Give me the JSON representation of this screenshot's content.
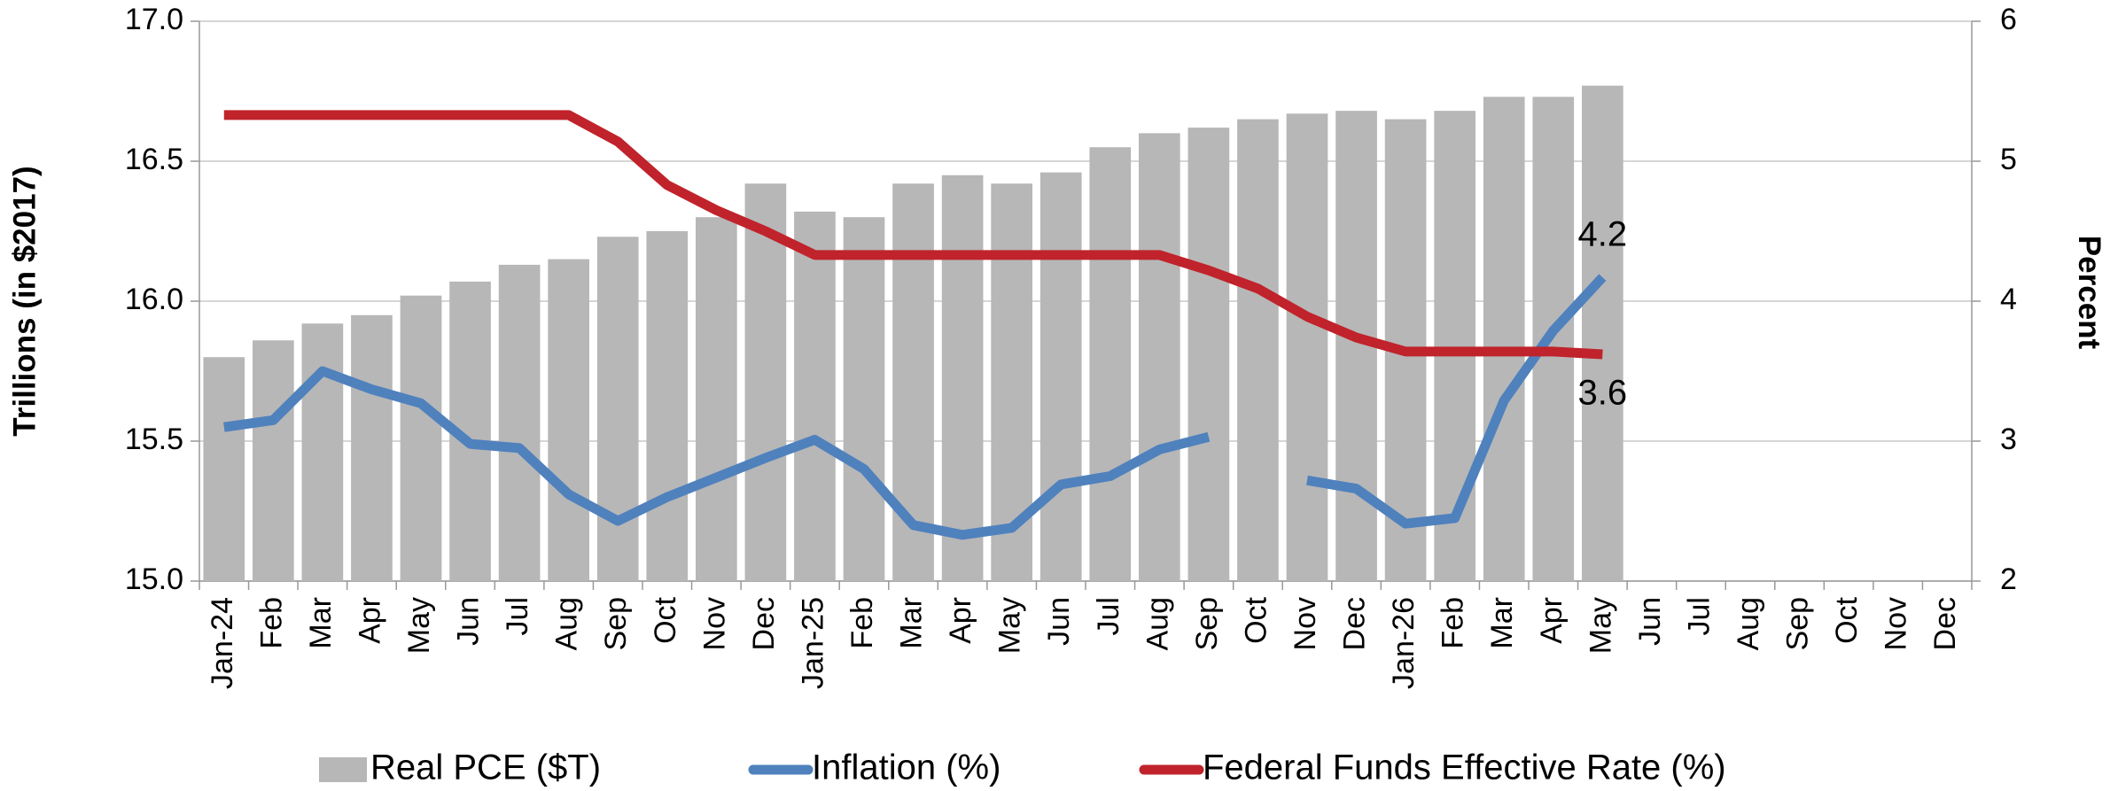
{
  "chart_data": {
    "type": "bar",
    "ylabel": "Trillions (in $2017)",
    "y2label": "Percent",
    "categories": [
      "Jan-24",
      "Feb",
      "Mar",
      "Apr",
      "May",
      "Jun",
      "Jul",
      "Aug",
      "Sep",
      "Oct",
      "Nov",
      "Dec",
      "Jan-25",
      "Feb",
      "Mar",
      "Apr",
      "May",
      "Jun",
      "Jul",
      "Aug",
      "Sep",
      "Oct",
      "Nov",
      "Dec",
      "Jan-26",
      "Feb",
      "Mar",
      "Apr",
      "May",
      "Jun",
      "Jul",
      "Aug",
      "Sep",
      "Oct",
      "Nov",
      "Dec"
    ],
    "ylim": [
      15,
      17
    ],
    "yticks": [
      {
        "value": 15,
        "label": "15.0"
      },
      {
        "value": 15.5,
        "label": "15.5"
      },
      {
        "value": 16,
        "label": "16.0"
      },
      {
        "value": 16.5,
        "label": "16.5"
      },
      {
        "value": 17,
        "label": "17.0"
      }
    ],
    "y2lim": [
      2,
      6
    ],
    "y2ticks": [
      2,
      3,
      4,
      5,
      6
    ],
    "grid": true,
    "legend": "bottom",
    "series": [
      {
        "name": "Real PCE ($T)",
        "type": "bar",
        "color": "#b7b7b7",
        "axis": "y",
        "values": [
          15.8,
          15.86,
          15.92,
          15.95,
          16.02,
          16.07,
          16.13,
          16.15,
          16.23,
          16.25,
          16.3,
          16.42,
          16.32,
          16.3,
          16.42,
          16.45,
          16.42,
          16.46,
          16.55,
          16.6,
          16.62,
          16.65,
          16.67,
          16.68,
          16.65,
          16.68,
          16.73,
          16.73,
          16.77,
          null,
          null,
          null,
          null,
          null,
          null,
          null
        ]
      },
      {
        "name": "Inflation (%)",
        "type": "line",
        "color": "#4f81bd",
        "axis": "y2",
        "values": [
          3.1,
          3.15,
          3.5,
          3.37,
          3.27,
          2.98,
          2.95,
          2.62,
          2.43,
          2.6,
          2.74,
          2.88,
          3.01,
          2.8,
          2.4,
          2.33,
          2.38,
          2.69,
          2.75,
          2.94,
          3.03,
          null,
          2.72,
          2.66,
          2.41,
          2.45,
          3.29,
          3.79,
          4.17,
          null,
          null,
          null,
          null,
          null,
          null,
          null
        ],
        "value_labels": [
          null,
          null,
          null,
          null,
          null,
          null,
          null,
          null,
          null,
          null,
          null,
          null,
          null,
          null,
          null,
          null,
          null,
          null,
          null,
          null,
          null,
          null,
          null,
          null,
          null,
          null,
          null,
          null,
          "4.2",
          null,
          null,
          null,
          null,
          null,
          null,
          null
        ]
      },
      {
        "name": "Federal Funds Effective Rate (%)",
        "type": "line",
        "color": "#c0232b",
        "axis": "y2",
        "values": [
          5.33,
          5.33,
          5.33,
          5.33,
          5.33,
          5.33,
          5.33,
          5.33,
          5.14,
          4.83,
          4.65,
          4.5,
          4.33,
          4.33,
          4.33,
          4.33,
          4.33,
          4.33,
          4.33,
          4.33,
          4.22,
          4.09,
          3.89,
          3.74,
          3.64,
          3.64,
          3.64,
          3.64,
          3.62,
          null,
          null,
          null,
          null,
          null,
          null,
          null
        ],
        "value_labels": [
          null,
          null,
          null,
          null,
          null,
          null,
          null,
          null,
          null,
          null,
          null,
          null,
          null,
          null,
          null,
          null,
          null,
          null,
          null,
          null,
          null,
          null,
          null,
          null,
          null,
          null,
          null,
          null,
          "3.6",
          null,
          null,
          null,
          null,
          null,
          null,
          null
        ]
      }
    ]
  }
}
